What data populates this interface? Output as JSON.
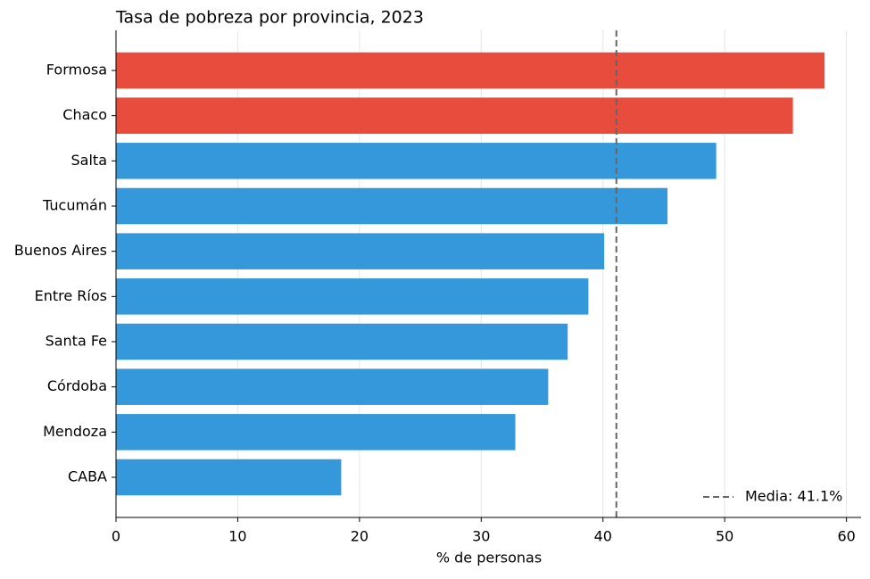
{
  "chart_data": {
    "type": "hbar",
    "title": "Tasa de pobreza por provincia, 2023",
    "x_label": "% de personas",
    "categories": [
      "Formosa",
      "Chaco",
      "Salta",
      "Tucumán",
      "Buenos Aires",
      "Entre Ríos",
      "Santa Fe",
      "Córdoba",
      "Mendoza",
      "CABA"
    ],
    "values": [
      58.2,
      55.6,
      49.3,
      45.3,
      40.1,
      38.8,
      37.1,
      35.5,
      32.8,
      18.5
    ],
    "colors": [
      "#e74c3c",
      "#e74c3c",
      "#3498db",
      "#3498db",
      "#3498db",
      "#3498db",
      "#3498db",
      "#3498db",
      "#3498db",
      "#3498db"
    ],
    "xlim": [
      0,
      61.2
    ],
    "xticks": [
      0,
      10,
      20,
      30,
      40,
      50,
      60
    ],
    "grid": true,
    "mean_line": {
      "value": 41.1,
      "label": "Media: 41.1%",
      "color": "#666666"
    },
    "legend_position": "lower right"
  }
}
